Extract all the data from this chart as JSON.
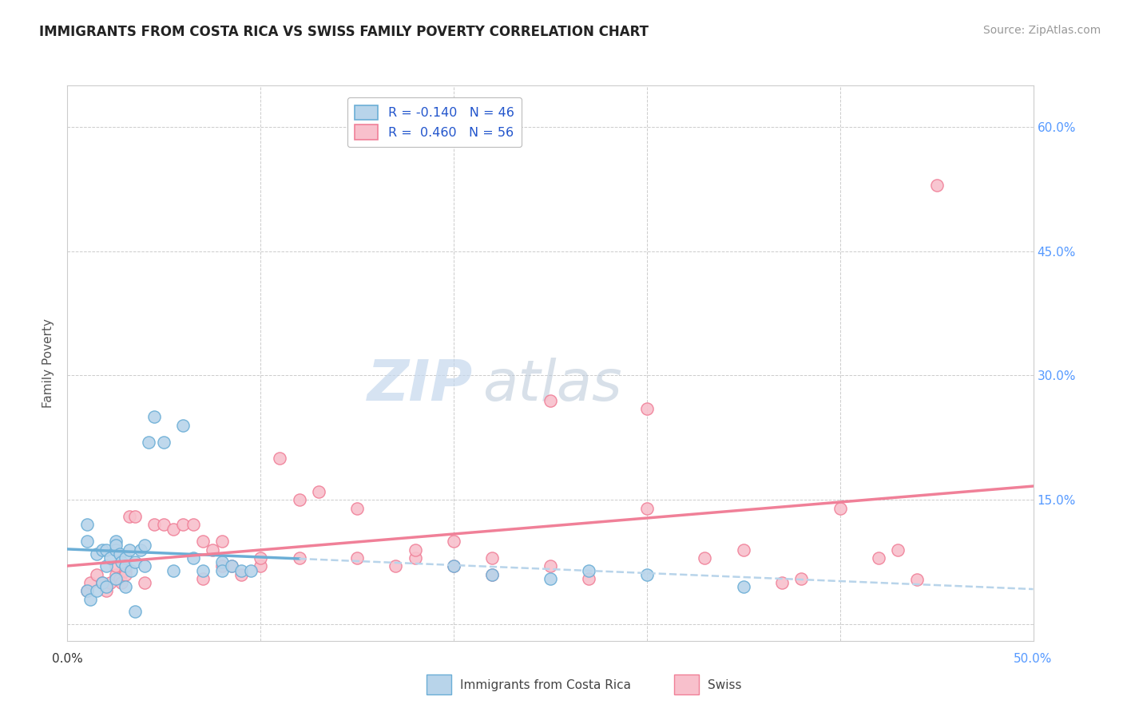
{
  "title": "IMMIGRANTS FROM COSTA RICA VS SWISS FAMILY POVERTY CORRELATION CHART",
  "source": "Source: ZipAtlas.com",
  "ylabel": "Family Poverty",
  "watermark_ZIP": "ZIP",
  "watermark_atlas": "atlas",
  "xlim": [
    0.0,
    50.0
  ],
  "ylim": [
    -2.0,
    65.0
  ],
  "yticks": [
    0.0,
    15.0,
    30.0,
    45.0,
    60.0
  ],
  "ytick_labels": [
    "",
    "15.0%",
    "30.0%",
    "45.0%",
    "60.0%"
  ],
  "xticks": [
    0.0,
    10.0,
    20.0,
    30.0,
    40.0,
    50.0
  ],
  "legend_r1": "R = -0.140   N = 46",
  "legend_r2": "R =  0.460   N = 56",
  "legend_label1": "Immigrants from Costa Rica",
  "legend_label2": "Swiss",
  "color_blue": "#6baed6",
  "color_pink": "#f08098",
  "color_blue_light": "#b8d4ea",
  "color_pink_light": "#f8c0cc",
  "blue_line_solid_end": 12.0,
  "blue_line_dashed_end": 50.0,
  "blue_scatter_x": [
    1.0,
    1.0,
    1.5,
    1.8,
    2.0,
    2.0,
    2.2,
    2.5,
    2.5,
    2.5,
    2.7,
    2.8,
    3.0,
    3.0,
    3.2,
    3.3,
    3.5,
    3.8,
    4.0,
    4.0,
    4.2,
    4.5,
    5.0,
    5.5,
    6.0,
    6.5,
    7.0,
    8.0,
    8.0,
    8.5,
    9.0,
    9.5,
    1.0,
    1.2,
    1.5,
    1.8,
    2.0,
    2.5,
    3.0,
    3.5,
    20.0,
    22.0,
    25.0,
    27.0,
    30.0,
    35.0
  ],
  "blue_scatter_y": [
    12.0,
    10.0,
    8.5,
    9.0,
    7.0,
    9.0,
    8.0,
    10.0,
    9.0,
    9.5,
    8.5,
    7.5,
    8.0,
    7.0,
    9.0,
    6.5,
    7.5,
    9.0,
    7.0,
    9.5,
    22.0,
    25.0,
    22.0,
    6.5,
    24.0,
    8.0,
    6.5,
    7.5,
    6.5,
    7.0,
    6.5,
    6.5,
    4.0,
    3.0,
    4.0,
    5.0,
    4.5,
    5.5,
    4.5,
    1.5,
    7.0,
    6.0,
    5.5,
    6.5,
    6.0,
    4.5
  ],
  "pink_scatter_x": [
    1.0,
    1.2,
    1.5,
    1.8,
    2.0,
    2.2,
    2.5,
    2.5,
    2.7,
    2.8,
    3.0,
    3.0,
    3.2,
    3.5,
    4.0,
    4.5,
    5.0,
    5.5,
    6.0,
    6.5,
    7.0,
    7.5,
    8.0,
    8.5,
    9.0,
    10.0,
    11.0,
    12.0,
    13.0,
    15.0,
    17.0,
    18.0,
    20.0,
    22.0,
    25.0,
    27.0,
    30.0,
    33.0,
    35.0,
    37.0,
    38.0,
    40.0,
    42.0,
    43.0,
    44.0,
    45.0,
    25.0,
    20.0,
    15.0,
    18.0,
    22.0,
    10.0,
    8.0,
    7.0,
    12.0,
    30.0
  ],
  "pink_scatter_y": [
    4.0,
    5.0,
    6.0,
    5.0,
    4.0,
    5.0,
    6.0,
    7.0,
    5.5,
    5.0,
    6.5,
    6.0,
    13.0,
    13.0,
    5.0,
    12.0,
    12.0,
    11.5,
    12.0,
    12.0,
    10.0,
    9.0,
    10.0,
    7.0,
    6.0,
    7.0,
    20.0,
    15.0,
    16.0,
    8.0,
    7.0,
    8.0,
    7.0,
    6.0,
    7.0,
    5.5,
    26.0,
    8.0,
    9.0,
    5.0,
    5.5,
    14.0,
    8.0,
    9.0,
    5.4,
    53.0,
    27.0,
    10.0,
    14.0,
    9.0,
    8.0,
    8.0,
    7.0,
    5.5,
    8.0,
    14.0
  ]
}
